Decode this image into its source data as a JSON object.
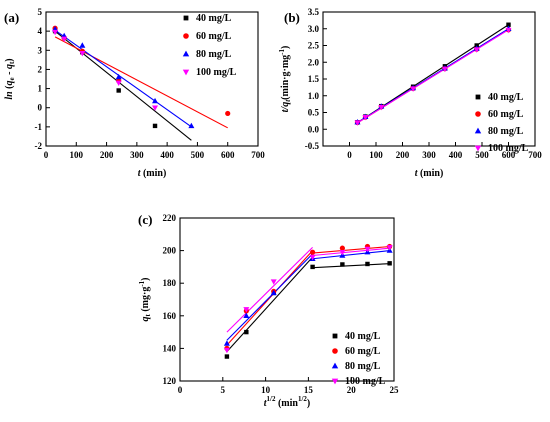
{
  "chart_data": [
    {
      "panel_label": "(a)",
      "type": "scatter",
      "xlabel_main": "t",
      "xlabel_unit": " (min)",
      "ylabel": "ln(q_e - q_t)",
      "xlim": [
        0,
        700
      ],
      "ylim": [
        -2,
        5
      ],
      "xticks": [
        0,
        100,
        200,
        300,
        400,
        500,
        600,
        700
      ],
      "yticks": [
        -2,
        -1,
        0,
        1,
        2,
        3,
        4,
        5
      ],
      "legend_position": "top-right",
      "series": [
        {
          "name": "40 mg/L",
          "color": "#000000",
          "marker": "square",
          "points": [
            [
              30,
              4.0
            ],
            [
              120,
              2.9
            ],
            [
              240,
              0.9
            ],
            [
              360,
              -0.95
            ]
          ],
          "fit": [
            [
              30,
              4.0
            ],
            [
              480,
              -1.7
            ]
          ]
        },
        {
          "name": "60 mg/L",
          "color": "#ff0000",
          "marker": "circle",
          "points": [
            [
              30,
              4.15
            ],
            [
              60,
              3.65
            ],
            [
              120,
              2.95
            ],
            [
              240,
              1.4
            ],
            [
              600,
              -0.3
            ]
          ],
          "fit": [
            [
              30,
              3.7
            ],
            [
              600,
              -1.05
            ]
          ]
        },
        {
          "name": "80 mg/L",
          "color": "#0000ff",
          "marker": "triangle-up",
          "points": [
            [
              30,
              4.1
            ],
            [
              60,
              3.75
            ],
            [
              120,
              3.25
            ],
            [
              240,
              1.6
            ],
            [
              360,
              0.35
            ],
            [
              480,
              -0.95
            ]
          ],
          "fit": [
            [
              30,
              4.05
            ],
            [
              480,
              -1.0
            ]
          ]
        },
        {
          "name": "100 mg/L",
          "color": "#ff00ff",
          "marker": "triangle-down",
          "points": [
            [
              30,
              3.95
            ],
            [
              60,
              3.6
            ],
            [
              120,
              2.85
            ],
            [
              240,
              1.3
            ],
            [
              360,
              0.0
            ]
          ]
        }
      ]
    },
    {
      "panel_label": "(b)",
      "type": "scatter",
      "xlabel_main": "t",
      "xlabel_unit": " (min)",
      "ylabel": "t/q_t (min·g·mg^-1)",
      "xlim": [
        -100,
        700
      ],
      "ylim": [
        -0.5,
        3.5
      ],
      "xticks": [
        0,
        100,
        200,
        300,
        400,
        500,
        600,
        700
      ],
      "yticks": [
        -0.5,
        0.0,
        0.5,
        1.0,
        1.5,
        2.0,
        2.5,
        3.0,
        3.5
      ],
      "legend_position": "right",
      "series": [
        {
          "name": "40 mg/L",
          "color": "#000000",
          "marker": "square",
          "points": [
            [
              30,
              0.21
            ],
            [
              60,
              0.38
            ],
            [
              120,
              0.69
            ],
            [
              240,
              1.27
            ],
            [
              360,
              1.88
            ],
            [
              480,
              2.5
            ],
            [
              600,
              3.12
            ]
          ],
          "fit": [
            [
              30,
              0.2
            ],
            [
              600,
              3.12
            ]
          ]
        },
        {
          "name": "60 mg/L",
          "color": "#ff0000",
          "marker": "circle",
          "points": [
            [
              30,
              0.2
            ],
            [
              60,
              0.36
            ],
            [
              120,
              0.67
            ],
            [
              240,
              1.22
            ],
            [
              360,
              1.81
            ],
            [
              480,
              2.39
            ],
            [
              600,
              2.97
            ]
          ],
          "fit": [
            [
              30,
              0.19
            ],
            [
              600,
              2.98
            ]
          ]
        },
        {
          "name": "80 mg/L",
          "color": "#0000ff",
          "marker": "triangle-up",
          "points": [
            [
              30,
              0.21
            ],
            [
              60,
              0.37
            ],
            [
              120,
              0.68
            ],
            [
              240,
              1.23
            ],
            [
              360,
              1.82
            ],
            [
              480,
              2.41
            ],
            [
              600,
              3.0
            ]
          ],
          "fit": [
            [
              30,
              0.2
            ],
            [
              600,
              3.0
            ]
          ]
        },
        {
          "name": "100 mg/L",
          "color": "#ff00ff",
          "marker": "triangle-down",
          "points": [
            [
              30,
              0.2
            ],
            [
              60,
              0.36
            ],
            [
              120,
              0.66
            ],
            [
              240,
              1.21
            ],
            [
              360,
              1.8
            ],
            [
              480,
              2.38
            ],
            [
              600,
              2.96
            ]
          ],
          "fit": [
            [
              30,
              0.19
            ],
            [
              600,
              2.97
            ]
          ]
        }
      ]
    },
    {
      "panel_label": "(c)",
      "type": "scatter",
      "xlabel_main": "t^1/2",
      "xlabel_unit": " (min^1/2)",
      "ylabel": "q_t (mg·g^-1)",
      "xlim": [
        0,
        25
      ],
      "ylim": [
        120,
        220
      ],
      "xticks": [
        0,
        5,
        10,
        15,
        20,
        25
      ],
      "yticks": [
        120,
        140,
        160,
        180,
        200,
        220
      ],
      "legend_position": "bottom-right",
      "series": [
        {
          "name": "40 mg/L",
          "color": "#000000",
          "marker": "square",
          "points": [
            [
              5.48,
              135
            ],
            [
              7.75,
              150
            ],
            [
              10.95,
              174
            ],
            [
              15.49,
              190
            ],
            [
              18.97,
              191.5
            ],
            [
              21.9,
              191.8
            ],
            [
              24.49,
              192.2
            ]
          ],
          "fit": [
            [
              5.48,
              138
            ],
            [
              15.49,
              196
            ],
            [
              15.49,
              189.5
            ],
            [
              24.49,
              192
            ]
          ]
        },
        {
          "name": "60 mg/L",
          "color": "#ff0000",
          "marker": "circle",
          "points": [
            [
              5.48,
              140
            ],
            [
              7.75,
              163
            ],
            [
              10.95,
              175
            ],
            [
              15.49,
              199
            ],
            [
              18.97,
              201.5
            ],
            [
              21.9,
              202.5
            ],
            [
              24.49,
              202.5
            ]
          ],
          "fit": [
            [
              5.48,
              142
            ],
            [
              15.49,
              200
            ],
            [
              15.49,
              198.5
            ],
            [
              24.49,
              202.5
            ]
          ]
        },
        {
          "name": "80 mg/L",
          "color": "#0000ff",
          "marker": "triangle-up",
          "points": [
            [
              5.48,
              143
            ],
            [
              7.75,
              160
            ],
            [
              10.95,
              174
            ],
            [
              15.49,
              195
            ],
            [
              18.97,
              197
            ],
            [
              21.9,
              199
            ],
            [
              24.49,
              200
            ]
          ],
          "fit": [
            [
              5.48,
              145
            ],
            [
              15.49,
              198
            ],
            [
              15.49,
              195
            ],
            [
              24.49,
              200
            ]
          ]
        },
        {
          "name": "100 mg/L",
          "color": "#ff00ff",
          "marker": "triangle-down",
          "points": [
            [
              5.48,
              139
            ],
            [
              7.75,
              164
            ],
            [
              10.95,
              181
            ],
            [
              15.49,
              196
            ],
            [
              18.97,
              199
            ],
            [
              21.9,
              201
            ],
            [
              24.49,
              202
            ]
          ],
          "fit": [
            [
              5.48,
              150
            ],
            [
              15.49,
              202
            ],
            [
              15.49,
              197
            ],
            [
              24.49,
              201.5
            ]
          ]
        }
      ]
    }
  ]
}
